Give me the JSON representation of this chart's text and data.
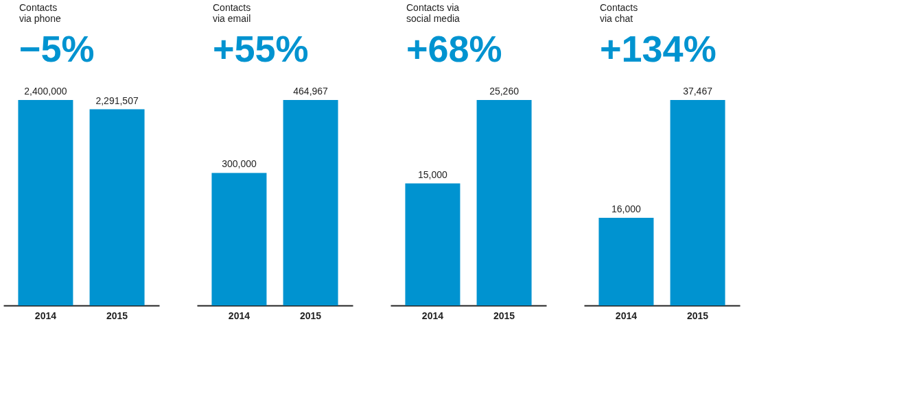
{
  "chart_data": [
    {
      "type": "bar",
      "title": "Contacts\nvia phone",
      "subtitle": "−5%",
      "categories": [
        "2014",
        "2015"
      ],
      "values": [
        2400000,
        2291507
      ],
      "colors": [
        "#0093d0",
        "#0093d0"
      ],
      "value_labels": [
        "2,400,000",
        "2,291,507"
      ]
    },
    {
      "type": "bar",
      "title": "Contacts\nvia email",
      "subtitle": "+55%",
      "categories": [
        "2014",
        "2015"
      ],
      "values": [
        300000,
        464967
      ],
      "colors": [
        "#0093d0",
        "#0093d0"
      ],
      "value_labels": [
        "300,000",
        "464,967"
      ]
    },
    {
      "type": "bar",
      "title": "Contacts via\nsocial media",
      "subtitle": "+68%",
      "categories": [
        "2014",
        "2015"
      ],
      "values": [
        15000,
        25260
      ],
      "colors": [
        "#0093d0",
        "#0093d0"
      ],
      "value_labels": [
        "15,000",
        "25,260"
      ]
    },
    {
      "type": "bar",
      "title": "Contacts\nvia chat",
      "subtitle": "+134%",
      "categories": [
        "2014",
        "2015"
      ],
      "values": [
        16000,
        37467
      ],
      "colors": [
        "#0093d0",
        "#0093d0"
      ],
      "value_labels": [
        "16,000",
        "37,467"
      ]
    }
  ]
}
